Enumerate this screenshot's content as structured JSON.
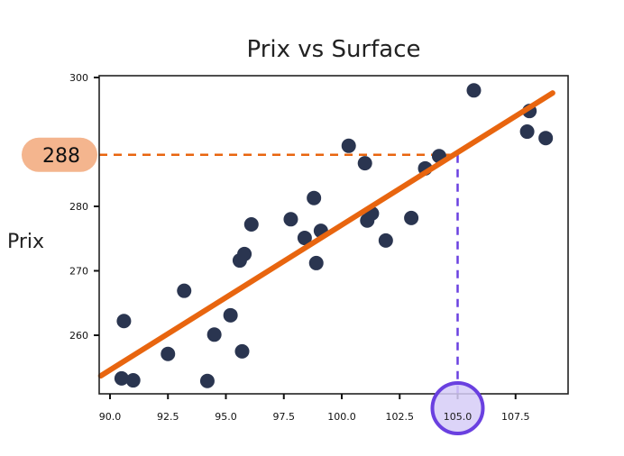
{
  "chart_data": {
    "type": "scatter",
    "title": "Prix vs Surface",
    "xlabel": "",
    "ylabel": "Prix",
    "xlim": [
      89.6,
      109.8
    ],
    "ylim": [
      251.5,
      300
    ],
    "x_ticks": [
      "90.0",
      "92.5",
      "95.0",
      "97.5",
      "100.0",
      "102.5",
      "105.0",
      "107.5"
    ],
    "y_ticks": [
      "260",
      "270",
      "280",
      "300"
    ],
    "grid": false,
    "series": [
      {
        "name": "data",
        "kind": "scatter",
        "color": "#2a3550",
        "points": [
          [
            90.5,
            253.3
          ],
          [
            91.0,
            253.0
          ],
          [
            90.6,
            262.2
          ],
          [
            92.5,
            257.1
          ],
          [
            93.2,
            266.9
          ],
          [
            94.2,
            252.9
          ],
          [
            94.5,
            260.1
          ],
          [
            95.2,
            263.1
          ],
          [
            95.7,
            257.5
          ],
          [
            95.6,
            271.6
          ],
          [
            95.8,
            272.6
          ],
          [
            96.1,
            277.2
          ],
          [
            97.8,
            278.0
          ],
          [
            98.4,
            275.1
          ],
          [
            98.8,
            281.3
          ],
          [
            98.9,
            271.2
          ],
          [
            99.1,
            276.2
          ],
          [
            100.3,
            289.4
          ],
          [
            101.0,
            286.7
          ],
          [
            101.1,
            277.8
          ],
          [
            101.3,
            278.9
          ],
          [
            101.9,
            274.7
          ],
          [
            103.0,
            278.2
          ],
          [
            103.6,
            285.9
          ],
          [
            104.2,
            287.8
          ],
          [
            105.7,
            298.0
          ],
          [
            108.0,
            291.6
          ],
          [
            108.1,
            294.8
          ],
          [
            108.8,
            290.6
          ]
        ]
      },
      {
        "name": "regression",
        "kind": "line",
        "color": "#e8650f",
        "points": [
          [
            89.6,
            253.7
          ],
          [
            109.1,
            297.6
          ]
        ]
      }
    ],
    "annotations": [
      {
        "type": "hline-dashed",
        "y": 288,
        "x_to": 105.0,
        "color": "#e8650f",
        "label": "288",
        "label_bg": "#f4b58e"
      },
      {
        "type": "vline-dashed",
        "x": 105.0,
        "y_to": 288,
        "color": "#6a40e0",
        "label": "105.0",
        "highlight": "circle",
        "highlight_fill": "#d6cdf7"
      }
    ]
  }
}
